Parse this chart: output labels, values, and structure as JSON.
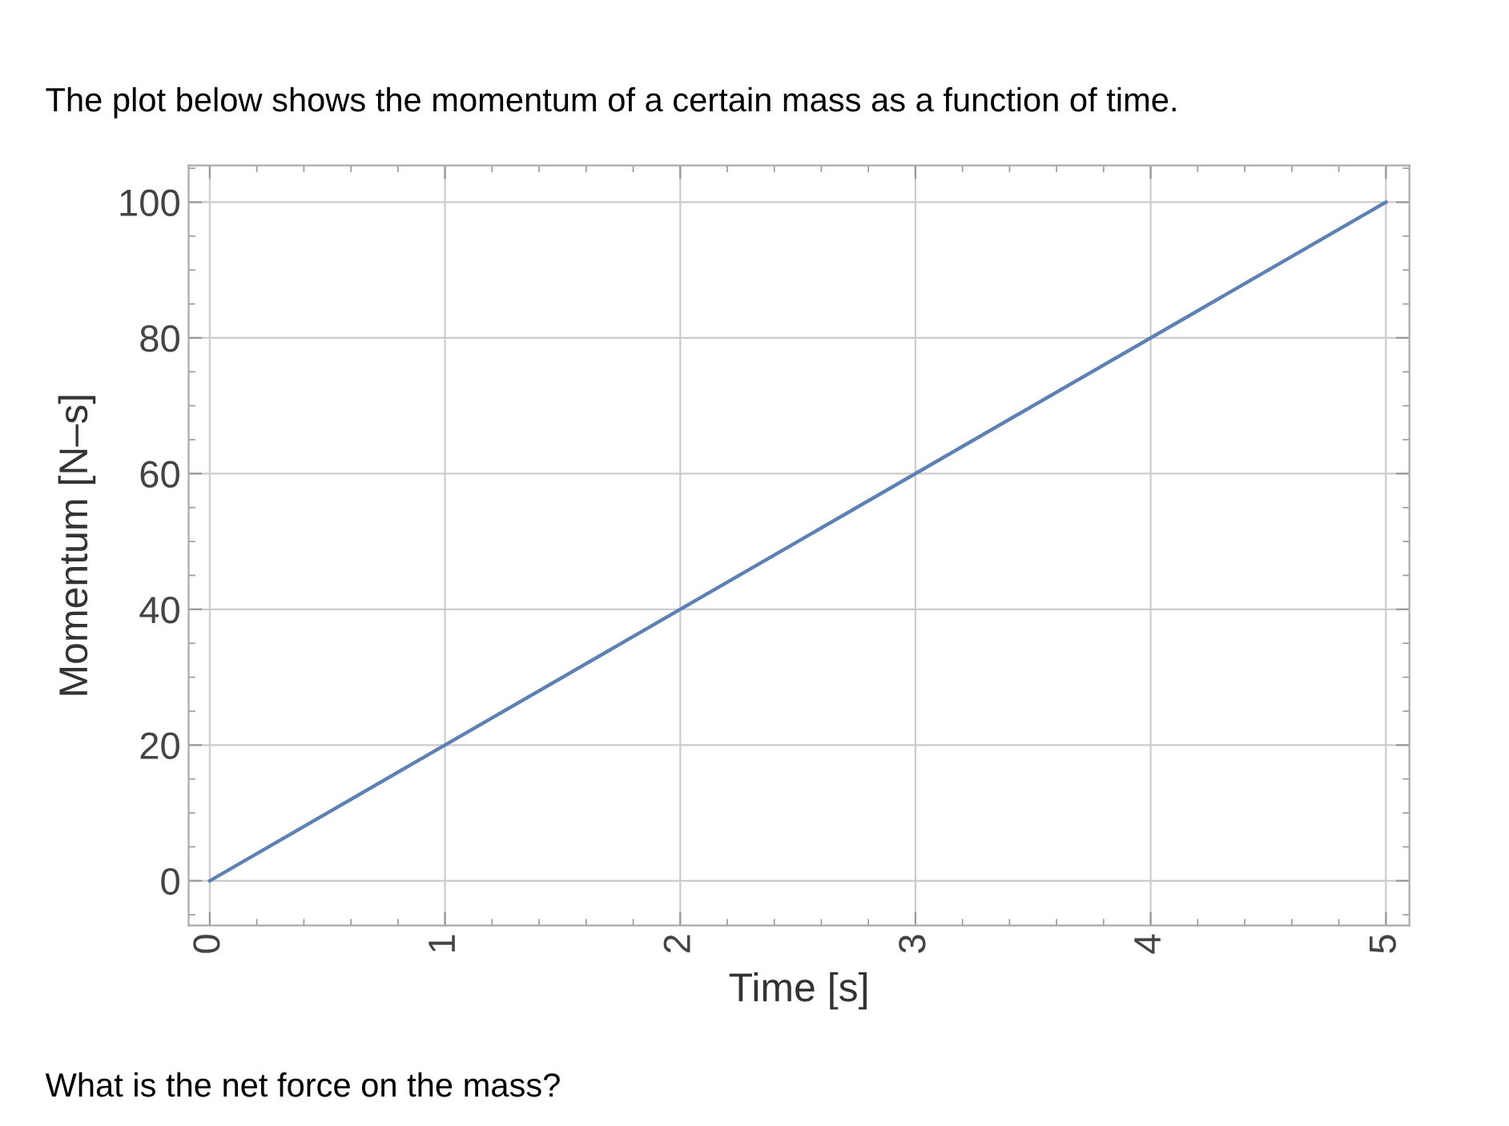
{
  "chart_data": {
    "type": "line",
    "title": "The plot below shows the momentum of a certain mass as a function of time.",
    "xlabel": "Time [s]",
    "ylabel": "Momentum [N–s]",
    "annotations": [
      "What is the net force on the mass?"
    ],
    "x": [
      0,
      5
    ],
    "series": [
      {
        "color": "#5e81b5",
        "values": [
          0,
          100
        ]
      }
    ],
    "xlim": [
      -0.09,
      5.1
    ],
    "ylim": [
      -6.6,
      105.4
    ],
    "xticks": [
      0,
      1,
      2,
      3,
      4,
      5
    ],
    "yticks": [
      0,
      20,
      40,
      60,
      80,
      100
    ],
    "grid": true,
    "marker": "none",
    "line_style": "solid"
  }
}
